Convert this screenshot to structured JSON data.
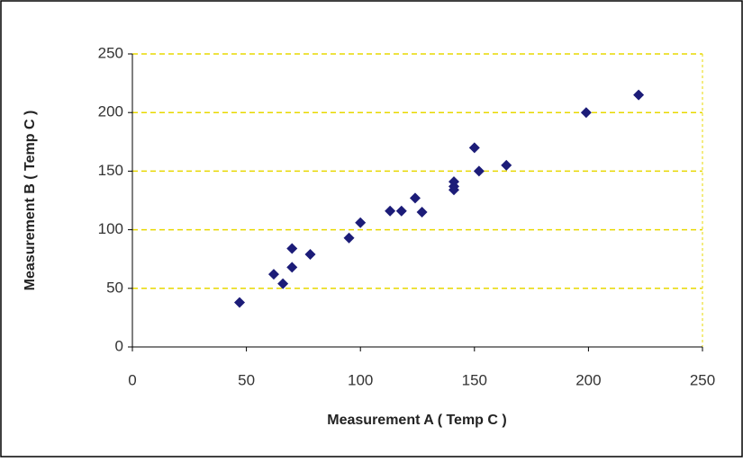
{
  "chart_data": {
    "type": "scatter",
    "x_label": "Measurement A  ( Temp C )",
    "y_label": "Measurement B  ( Temp C )",
    "x": [
      47,
      62,
      66,
      70,
      70,
      78,
      95,
      100,
      113,
      118,
      124,
      127,
      141,
      141,
      141,
      150,
      152,
      164,
      199,
      222
    ],
    "values": [
      38,
      62,
      54,
      84,
      68,
      79,
      93,
      106,
      116,
      116,
      127,
      115,
      141,
      137,
      134,
      170,
      150,
      155,
      200,
      215
    ],
    "color": "#1c1c78",
    "xlim": [
      0,
      250
    ],
    "xticks": [
      0,
      50,
      100,
      150,
      200,
      250
    ],
    "ylim": [
      0,
      250
    ],
    "yticks": [
      0,
      50,
      100,
      150,
      200,
      250
    ],
    "grid": true
  }
}
